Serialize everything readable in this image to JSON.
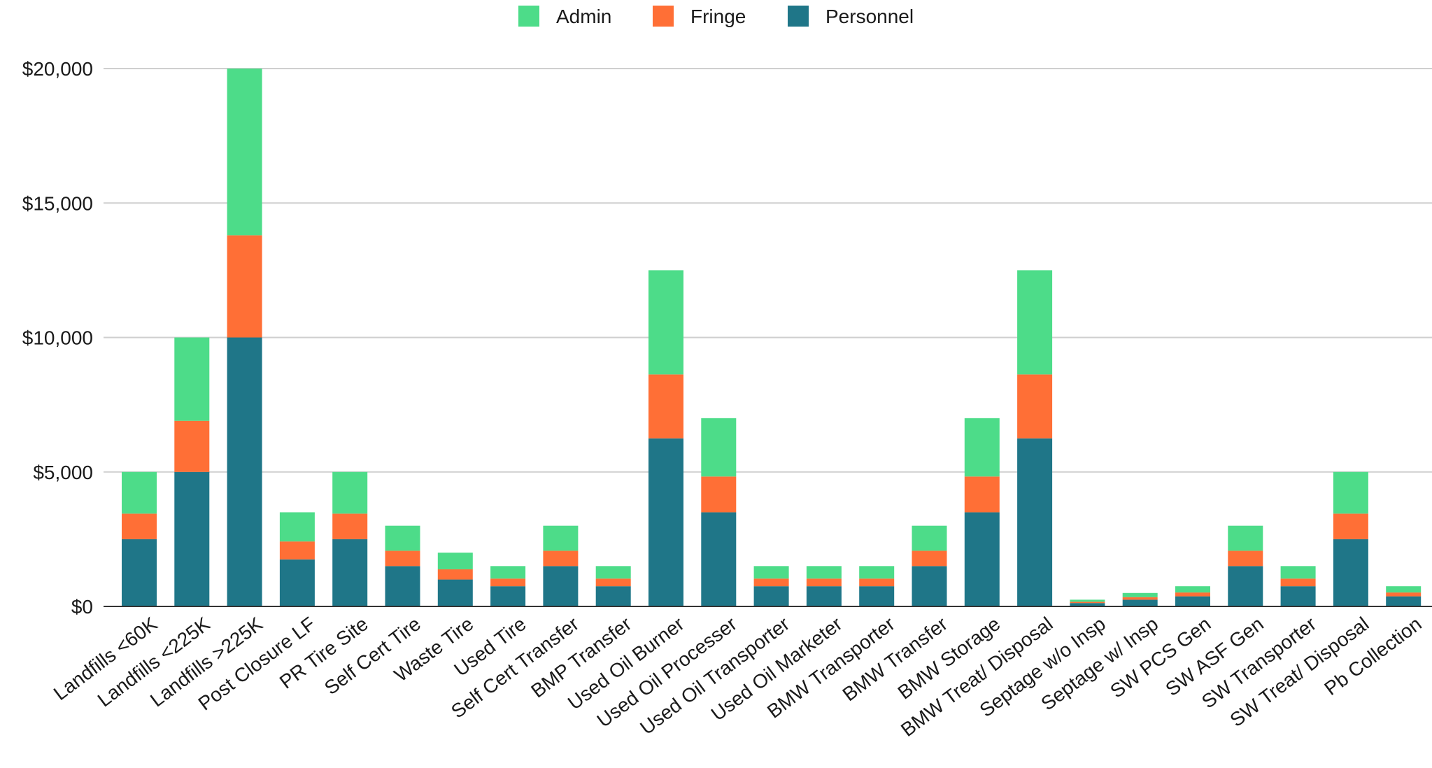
{
  "chart_data": {
    "type": "bar",
    "stacked": true,
    "categories": [
      "Landfills <60K",
      "Landfills <225K",
      "Landfills >225K",
      "Post Closure LF",
      "PR Tire Site",
      "Self Cert Tire",
      "Waste Tire",
      "Used Tire",
      "Self Cert Transfer",
      "BMP Transfer",
      "Used Oil Burner",
      "Used Oil Processer",
      "Used Oil Transporter",
      "Used Oil Marketer",
      "BMW Transporter",
      "BMW Transfer",
      "BMW Storage",
      "BMW Treat/ Disposal",
      "Septage w/o Insp",
      "Septage w/ Insp",
      "SW PCS Gen",
      "SW ASF Gen",
      "SW Transporter",
      "SW Treat/ Disposal",
      "Pb Collection"
    ],
    "series": [
      {
        "name": "Personnel",
        "color": "#1f7688",
        "values": [
          2500,
          5000,
          10000,
          1750,
          2500,
          1500,
          1000,
          750,
          1500,
          750,
          6250,
          3500,
          750,
          750,
          750,
          1500,
          3500,
          6250,
          125,
          250,
          375,
          1500,
          750,
          2500,
          375
        ]
      },
      {
        "name": "Fringe",
        "color": "#ff6f36",
        "values": [
          950,
          1900,
          3800,
          665,
          950,
          570,
          380,
          285,
          570,
          285,
          2375,
          1330,
          285,
          285,
          285,
          570,
          1330,
          2375,
          48,
          95,
          143,
          570,
          285,
          950,
          143
        ]
      },
      {
        "name": "Admin",
        "color": "#4ddc89",
        "values": [
          1550,
          3100,
          6200,
          1085,
          1550,
          930,
          620,
          465,
          930,
          465,
          3875,
          2170,
          465,
          465,
          465,
          930,
          2170,
          3875,
          77,
          155,
          232,
          930,
          465,
          1550,
          232
        ]
      }
    ],
    "legend": {
      "position": "top-center",
      "order": [
        "Admin",
        "Fringe",
        "Personnel"
      ]
    },
    "yticks": [
      "$0",
      "$5,000",
      "$10,000",
      "$15,000",
      "$20,000"
    ],
    "ytick_values": [
      0,
      5000,
      10000,
      15000,
      20000
    ],
    "ylim": [
      0,
      20000
    ],
    "grid": true,
    "title": "",
    "xlabel": "",
    "ylabel": ""
  }
}
